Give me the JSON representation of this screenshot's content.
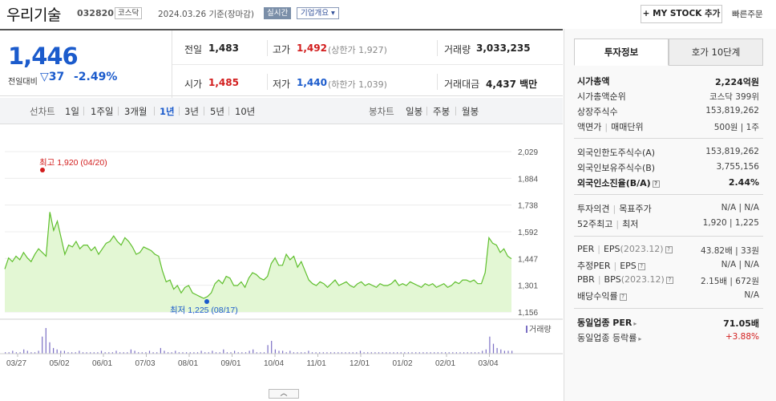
{
  "header": {
    "name": "우리기술",
    "code": "032820",
    "market": "코스닥",
    "base_time": "2024.03.26  기준(장마감)",
    "live": "실시간",
    "company": "기업개요 ▾",
    "mystock": "+ MY STOCK 추가",
    "quick_order": "빠른주문"
  },
  "price": {
    "current": "1,446",
    "change_label": "전일대비",
    "change_amt": "37",
    "change_pct": "-2.49%"
  },
  "quotes": {
    "prev_label": "전일",
    "prev": "1,483",
    "high_label": "고가",
    "high": "1,492",
    "upper_limit": "(상한가 1,927)",
    "volume_label": "거래량",
    "volume": "3,033,235",
    "open_label": "시가",
    "open": "1,485",
    "low_label": "저가",
    "low": "1,440",
    "lower_limit": "(하한가 1,039)",
    "amount_label": "거래대금",
    "amount": "4,437 백만"
  },
  "period_tabs": {
    "line_head": "선차트",
    "items": [
      "1일",
      "1주일",
      "3개월",
      "1년",
      "3년",
      "5년",
      "10년"
    ],
    "active": "1년",
    "candle_head": "봉차트",
    "candle_items": [
      "일봉",
      "주봉",
      "월봉"
    ]
  },
  "chart_data": {
    "type": "area",
    "y_ticks": [
      "2,029",
      "1,884",
      "1,738",
      "1,592",
      "1,447",
      "1,301",
      "1,156"
    ],
    "ylim": [
      1156,
      2029
    ],
    "x_ticks": [
      "03/27",
      "05/02",
      "06/01",
      "07/03",
      "08/01",
      "09/01",
      "10/04",
      "11/01",
      "12/01",
      "01/02",
      "02/01",
      "03/04"
    ],
    "series": [
      {
        "values": [
          1390,
          1450,
          1430,
          1460,
          1440,
          1480,
          1450,
          1430,
          1470,
          1500,
          1480,
          1460,
          1700,
          1600,
          1650,
          1560,
          1470,
          1520,
          1510,
          1540,
          1500,
          1520,
          1520,
          1490,
          1510,
          1470,
          1500,
          1530,
          1540,
          1570,
          1540,
          1520,
          1560,
          1540,
          1510,
          1470,
          1480,
          1510,
          1500,
          1490,
          1470,
          1460,
          1380,
          1320,
          1330,
          1280,
          1300,
          1260,
          1290,
          1300,
          1260,
          1250,
          1240,
          1230,
          1240,
          1260,
          1310,
          1330,
          1310,
          1350,
          1340,
          1300,
          1300,
          1320,
          1290,
          1340,
          1370,
          1360,
          1340,
          1330,
          1350,
          1420,
          1450,
          1410,
          1410,
          1470,
          1440,
          1460,
          1400,
          1430,
          1380,
          1330,
          1310,
          1300,
          1320,
          1310,
          1290,
          1310,
          1330,
          1300,
          1310,
          1320,
          1300,
          1290,
          1310,
          1320,
          1300,
          1310,
          1300,
          1290,
          1310,
          1300,
          1300,
          1310,
          1330,
          1300,
          1310,
          1300,
          1320,
          1310,
          1300,
          1290,
          1310,
          1300,
          1310,
          1290,
          1300,
          1310,
          1290,
          1300,
          1320,
          1310,
          1330,
          1330,
          1320,
          1330,
          1310,
          1310,
          1370,
          1560,
          1530,
          1520,
          1480,
          1500,
          1460,
          1446
        ]
      }
    ],
    "max_label": "최고 1,920 (04/20)",
    "min_label": "최저 1,225 (08/17)",
    "volume_label": "거래량",
    "volume_values": [
      1,
      1,
      2,
      1,
      1,
      3,
      2,
      1,
      1,
      2,
      12,
      18,
      8,
      4,
      3,
      2,
      2,
      1,
      1,
      1,
      2,
      1,
      1,
      1,
      1,
      1,
      2,
      1,
      1,
      1,
      2,
      1,
      1,
      1,
      3,
      2,
      1,
      1,
      1,
      2,
      1,
      1,
      4,
      2,
      1,
      1,
      2,
      1,
      1,
      1,
      1,
      1,
      1,
      2,
      1,
      1,
      2,
      1,
      1,
      3,
      1,
      1,
      2,
      1,
      1,
      1,
      2,
      3,
      1,
      1,
      1,
      6,
      9,
      3,
      2,
      2,
      1,
      2,
      1,
      1,
      1,
      1,
      2,
      1,
      1,
      1,
      1,
      1,
      1,
      1,
      1,
      1,
      1,
      1,
      1,
      1,
      2,
      1,
      1,
      1,
      1,
      1,
      1,
      1,
      1,
      1,
      1,
      1,
      1,
      1,
      1,
      1,
      1,
      1,
      1,
      1,
      1,
      1,
      1,
      1,
      1,
      1,
      1,
      1,
      1,
      1,
      1,
      1,
      1,
      2,
      3,
      12,
      7,
      4,
      3,
      2,
      2,
      2
    ],
    "collapse": "︿"
  },
  "right_panel": {
    "tab_invest": "투자정보",
    "tab_order": "호가 10단계",
    "market_cap_label": "시가총액",
    "market_cap": "2,224억원",
    "rank_label": "시가총액순위",
    "rank": "코스닥 399위",
    "shares_label": "상장주식수",
    "shares": "153,819,262",
    "par_label": "액면가",
    "unit_label": "매매단위",
    "par_unit": "500원 | 1주",
    "foreign_limit_label": "외국인한도주식수(A)",
    "foreign_limit": "153,819,262",
    "foreign_hold_label": "외국인보유주식수(B)",
    "foreign_hold": "3,755,156",
    "foreign_ratio_label": "외국인소진율(B/A)",
    "foreign_ratio": "2.44%",
    "opinion_label": "투자의견",
    "target_label": "목표주가",
    "opinion_target": "N/A | N/A",
    "w52_label": "52주최고",
    "w52_low_label": "최저",
    "w52": "1,920 | 1,225",
    "per_label": "PER",
    "eps_label": "EPS",
    "eps_year": "(2023.12)",
    "per_eps": "43.82배 | 33원",
    "est_per_label": "추정PER",
    "est_eps_label": "EPS",
    "est_per_eps": "N/A | N/A",
    "pbr_label": "PBR",
    "bps_label": "BPS",
    "bps_year": "(2023.12)",
    "pbr_bps": "2.15배 | 672원",
    "div_label": "배당수익률",
    "div": "N/A",
    "ind_per_label": "동일업종 PER",
    "ind_per": "71.05배",
    "ind_chg_label": "동일업종 등락률",
    "ind_chg": "+3.88%",
    "icon_help": "?",
    "icon_arrow": "▸"
  },
  "colors": {
    "up": "#d21d1d",
    "down": "#1b5bcc",
    "line": "#5fbf2d",
    "fill": "#e3f7d4",
    "volume": "#7b6fc4"
  }
}
